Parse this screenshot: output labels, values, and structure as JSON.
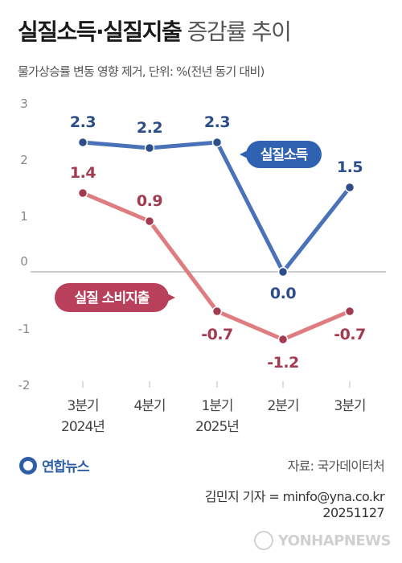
{
  "header": {
    "title_bold": "실질소득·실질지출",
    "title_light": "증감률 추이",
    "subtitle": "물가상승률 변동 영향 제거, 단위: %(전년 동기 대비)"
  },
  "chart_data": {
    "type": "line",
    "title": "실질소득·실질지출 증감률 추이",
    "subtitle": "물가상승률 변동 영향 제거, 단위: %(전년 동기 대비)",
    "categories": [
      [
        "3분기",
        "2024년"
      ],
      [
        "4분기",
        ""
      ],
      [
        "1분기",
        "2025년"
      ],
      [
        "2분기",
        ""
      ],
      [
        "3분기",
        ""
      ]
    ],
    "ylim": [
      -2,
      3
    ],
    "yticks": [
      3,
      2,
      1,
      0,
      -1,
      -2
    ],
    "grid": false,
    "series": [
      {
        "name": "실질소득",
        "color": "#4a72b8",
        "label_color": "#2c4d8a",
        "values": [
          2.3,
          2.2,
          2.3,
          0.0,
          1.5
        ]
      },
      {
        "name": "실질 소비지출",
        "color": "#de7c80",
        "label_color": "#a33a4f",
        "values": [
          1.4,
          0.9,
          -0.7,
          -1.2,
          -0.7
        ]
      }
    ]
  },
  "footer": {
    "logo": "연합뉴스",
    "source": "자료: 국가데이터처",
    "credit_line1": "김민지 기자 = minfo@yna.co.kr",
    "credit_line2": "20251127",
    "watermark": "YONHAPNEWS"
  },
  "colors": {
    "income_badge": "#2f62b0",
    "spending_badge": "#b8405a",
    "axis": "#bbbbbb"
  }
}
